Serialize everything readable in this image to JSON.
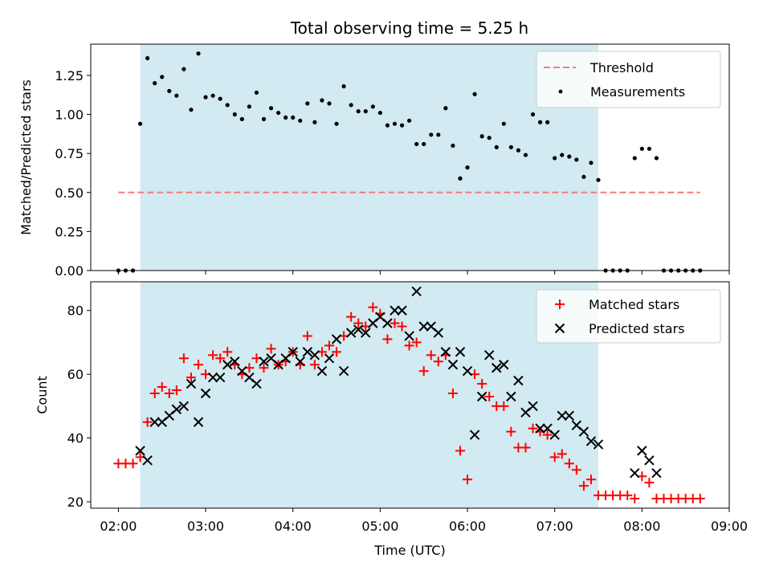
{
  "title": "Total observing time = 5.25 h",
  "colors": {
    "threshold": "#f47c7c",
    "measurement": "#000000",
    "matched": "#ff0000",
    "predicted": "#000000",
    "shade": "#add8e6"
  },
  "chart_data": [
    {
      "type": "scatter",
      "panel": "top",
      "ylabel": "Matched/Predicted stars",
      "xlabel": "",
      "ylim": [
        0,
        1.45
      ],
      "xlim": [
        "01:41",
        "09:00"
      ],
      "yticks": [
        "0.00",
        "0.25",
        "0.50",
        "0.75",
        "1.00",
        "1.25"
      ],
      "yticks_values": [
        0,
        0.25,
        0.5,
        0.75,
        1.0,
        1.25
      ],
      "shaded_interval": [
        "02:15",
        "07:30"
      ],
      "threshold": {
        "name": "Threshold",
        "y": 0.5,
        "x_from": "02:00",
        "x_to": "08:40"
      },
      "legend": {
        "position": "top-right",
        "entries": [
          "Threshold",
          "Measurements"
        ]
      },
      "series": [
        {
          "name": "Measurements",
          "x": [
            "02:00",
            "02:05",
            "02:10",
            "02:15",
            "02:20",
            "02:25",
            "02:30",
            "02:35",
            "02:40",
            "02:45",
            "02:50",
            "02:55",
            "03:00",
            "03:05",
            "03:10",
            "03:15",
            "03:20",
            "03:25",
            "03:30",
            "03:35",
            "03:40",
            "03:45",
            "03:50",
            "03:55",
            "04:00",
            "04:05",
            "04:10",
            "04:15",
            "04:20",
            "04:25",
            "04:30",
            "04:35",
            "04:40",
            "04:45",
            "04:50",
            "04:55",
            "05:00",
            "05:05",
            "05:10",
            "05:15",
            "05:20",
            "05:25",
            "05:30",
            "05:35",
            "05:40",
            "05:45",
            "05:50",
            "05:55",
            "06:00",
            "06:05",
            "06:10",
            "06:15",
            "06:20",
            "06:25",
            "06:30",
            "06:35",
            "06:40",
            "06:45",
            "06:50",
            "06:55",
            "07:00",
            "07:05",
            "07:10",
            "07:15",
            "07:20",
            "07:25",
            "07:30",
            "07:35",
            "07:40",
            "07:45",
            "07:50",
            "07:55",
            "08:00",
            "08:05",
            "08:10",
            "08:15",
            "08:20",
            "08:25",
            "08:30",
            "08:35",
            "08:40"
          ],
          "y": [
            0,
            0,
            0,
            0.94,
            1.36,
            1.2,
            1.24,
            1.15,
            1.12,
            1.29,
            1.03,
            1.39,
            1.11,
            1.12,
            1.1,
            1.06,
            1.0,
            0.97,
            1.05,
            1.14,
            0.97,
            1.04,
            1.01,
            0.98,
            0.98,
            0.96,
            1.07,
            0.95,
            1.09,
            1.07,
            0.94,
            1.18,
            1.06,
            1.02,
            1.02,
            1.05,
            1.01,
            0.93,
            0.94,
            0.93,
            0.96,
            0.81,
            0.81,
            0.87,
            0.87,
            1.04,
            0.8,
            0.59,
            0.66,
            1.13,
            0.86,
            0.85,
            0.79,
            0.94,
            0.79,
            0.77,
            0.74,
            1.0,
            0.95,
            0.95,
            0.72,
            0.74,
            0.73,
            0.71,
            0.6,
            0.69,
            0.58,
            0,
            0,
            0,
            0,
            0.72,
            0.78,
            0.78,
            0.72,
            0,
            0,
            0,
            0,
            0,
            0
          ]
        }
      ]
    },
    {
      "type": "scatter",
      "panel": "bottom",
      "xlabel": "Time (UTC)",
      "ylabel": "Count",
      "ylim": [
        18,
        89
      ],
      "xlim": [
        "01:41",
        "09:00"
      ],
      "xticks": [
        "02:00",
        "03:00",
        "04:00",
        "05:00",
        "06:00",
        "07:00",
        "08:00",
        "09:00"
      ],
      "yticks": [
        "20",
        "40",
        "60",
        "80"
      ],
      "yticks_values": [
        20,
        40,
        60,
        80
      ],
      "shaded_interval": [
        "02:15",
        "07:30"
      ],
      "legend": {
        "position": "top-right",
        "entries": [
          "Matched stars",
          "Predicted stars"
        ]
      },
      "series": [
        {
          "name": "Matched stars",
          "marker": "+",
          "x": [
            "02:00",
            "02:05",
            "02:10",
            "02:15",
            "02:20",
            "02:25",
            "02:30",
            "02:35",
            "02:40",
            "02:45",
            "02:50",
            "02:55",
            "03:00",
            "03:05",
            "03:10",
            "03:15",
            "03:20",
            "03:25",
            "03:30",
            "03:35",
            "03:40",
            "03:45",
            "03:50",
            "03:55",
            "04:00",
            "04:05",
            "04:10",
            "04:15",
            "04:20",
            "04:25",
            "04:30",
            "04:35",
            "04:40",
            "04:45",
            "04:50",
            "04:55",
            "05:00",
            "05:05",
            "05:10",
            "05:15",
            "05:20",
            "05:25",
            "05:30",
            "05:35",
            "05:40",
            "05:45",
            "05:50",
            "05:55",
            "06:00",
            "06:05",
            "06:10",
            "06:15",
            "06:20",
            "06:25",
            "06:30",
            "06:35",
            "06:40",
            "06:45",
            "06:50",
            "06:55",
            "07:00",
            "07:05",
            "07:10",
            "07:15",
            "07:20",
            "07:25",
            "07:30",
            "07:35",
            "07:40",
            "07:45",
            "07:50",
            "07:55",
            "08:00",
            "08:05",
            "08:10",
            "08:15",
            "08:20",
            "08:25",
            "08:30",
            "08:35",
            "08:40"
          ],
          "y": [
            32,
            32,
            32,
            34,
            45,
            54,
            56,
            54,
            55,
            65,
            59,
            63,
            60,
            66,
            65,
            67,
            63,
            60,
            62,
            65,
            62,
            68,
            63,
            64,
            67,
            63,
            72,
            63,
            67,
            69,
            67,
            72,
            78,
            76,
            75,
            81,
            79,
            71,
            76,
            75,
            69,
            70,
            61,
            66,
            64,
            66,
            54,
            36,
            27,
            60,
            57,
            53,
            50,
            50,
            42,
            37,
            37,
            43,
            42,
            41,
            34,
            35,
            32,
            30,
            25,
            27,
            22,
            22,
            22,
            22,
            22,
            21,
            28,
            26,
            21,
            21,
            21,
            21,
            21,
            21,
            21
          ]
        },
        {
          "name": "Predicted stars",
          "marker": "x",
          "x": [
            "02:15",
            "02:20",
            "02:25",
            "02:30",
            "02:35",
            "02:40",
            "02:45",
            "02:50",
            "02:55",
            "03:00",
            "03:05",
            "03:10",
            "03:15",
            "03:20",
            "03:25",
            "03:30",
            "03:35",
            "03:40",
            "03:45",
            "03:50",
            "03:55",
            "04:00",
            "04:05",
            "04:10",
            "04:15",
            "04:20",
            "04:25",
            "04:30",
            "04:35",
            "04:40",
            "04:45",
            "04:50",
            "04:55",
            "05:00",
            "05:05",
            "05:10",
            "05:15",
            "05:20",
            "05:25",
            "05:30",
            "05:35",
            "05:40",
            "05:45",
            "05:50",
            "05:55",
            "06:00",
            "06:05",
            "06:10",
            "06:15",
            "06:20",
            "06:25",
            "06:30",
            "06:35",
            "06:40",
            "06:45",
            "06:50",
            "06:55",
            "07:00",
            "07:05",
            "07:10",
            "07:15",
            "07:20",
            "07:25",
            "07:30",
            "07:55",
            "08:00",
            "08:05",
            "08:10"
          ],
          "y": [
            36,
            33,
            45,
            45,
            47,
            49,
            50,
            57,
            45,
            54,
            59,
            59,
            63,
            64,
            61,
            59,
            57,
            64,
            65,
            63,
            65,
            67,
            64,
            67,
            66,
            61,
            65,
            71,
            61,
            73,
            74,
            73,
            76,
            78,
            76,
            80,
            80,
            72,
            86,
            75,
            75,
            73,
            67,
            63,
            67,
            61,
            41,
            53,
            66,
            62,
            63,
            53,
            58,
            48,
            50,
            43,
            43,
            41,
            47,
            47,
            44,
            42,
            39,
            38,
            29,
            36,
            33,
            29
          ]
        }
      ]
    }
  ]
}
